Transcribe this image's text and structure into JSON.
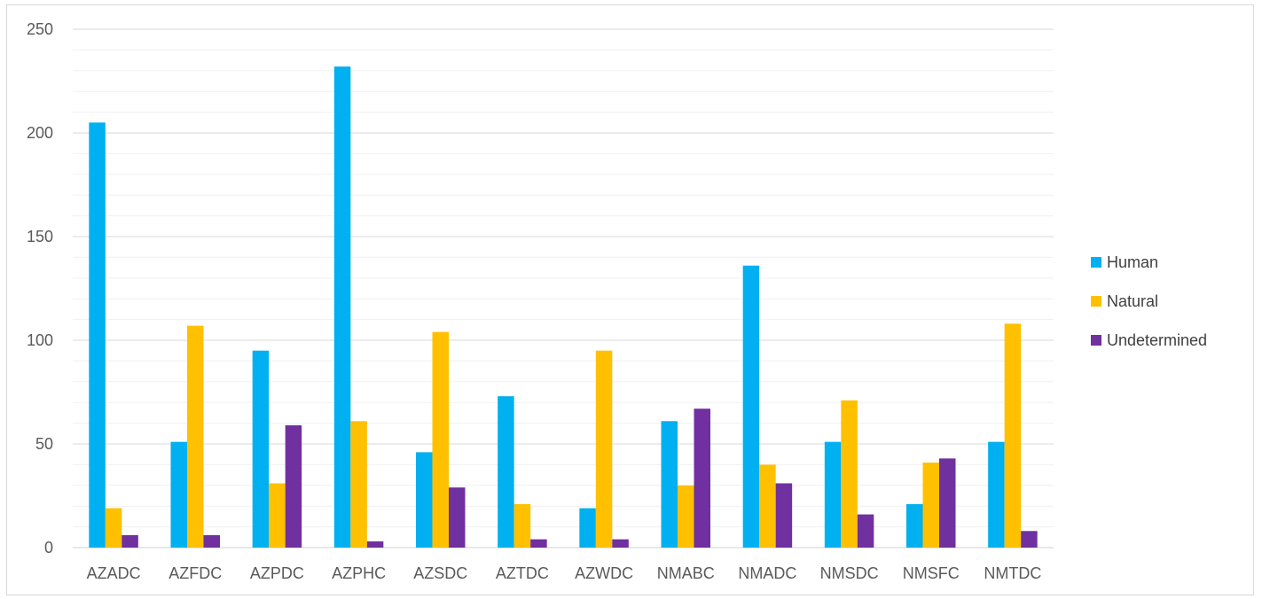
{
  "chart_data": {
    "type": "bar",
    "categories": [
      "AZADC",
      "AZFDC",
      "AZPDC",
      "AZPHC",
      "AZSDC",
      "AZTDC",
      "AZWDC",
      "NMABC",
      "NMADC",
      "NMSDC",
      "NMSFC",
      "NMTDC"
    ],
    "series": [
      {
        "name": "Human",
        "color": "#00b0f0",
        "values": [
          205,
          51,
          95,
          232,
          46,
          73,
          19,
          61,
          136,
          51,
          21,
          51
        ]
      },
      {
        "name": "Natural",
        "color": "#ffc000",
        "values": [
          19,
          107,
          31,
          61,
          104,
          21,
          95,
          30,
          40,
          71,
          41,
          108
        ]
      },
      {
        "name": "Undetermined",
        "color": "#7030a0",
        "values": [
          6,
          6,
          59,
          3,
          29,
          4,
          4,
          67,
          31,
          16,
          43,
          8
        ]
      }
    ],
    "ylim": [
      0,
      250
    ],
    "yticks": [
      0,
      50,
      100,
      150,
      200,
      250
    ],
    "minor_grid_step": 10,
    "grid": true,
    "legend_position": "right",
    "title": "",
    "xlabel": "",
    "ylabel": ""
  }
}
